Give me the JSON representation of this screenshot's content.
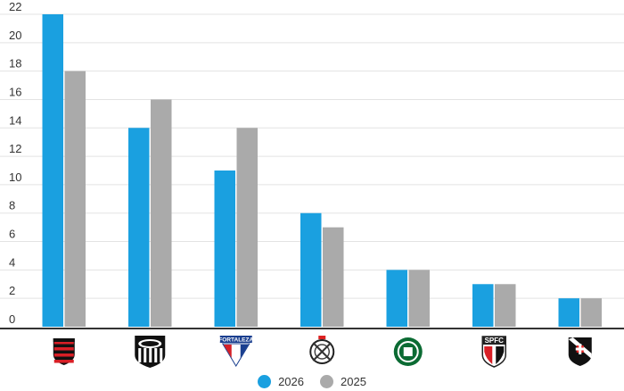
{
  "chart_data": {
    "type": "bar",
    "categories": [
      "flamengo-crest-icon",
      "ceara-crest-icon",
      "fortaleza-crest-icon",
      "corinthians-crest-icon",
      "palmeiras-crest-icon",
      "sao-paulo-crest-icon",
      "vasco-crest-icon"
    ],
    "series": [
      {
        "name": "2026",
        "color": "#1aa0e0",
        "values": [
          22,
          14,
          11,
          8,
          4,
          3,
          2
        ]
      },
      {
        "name": "2025",
        "color": "#aaaaaa",
        "values": [
          18,
          16,
          14,
          7,
          4,
          3,
          2
        ]
      }
    ],
    "y_ticks": [
      "0",
      "2",
      "4",
      "6",
      "8",
      "10",
      "12",
      "14",
      "16",
      "18",
      "20",
      "22"
    ],
    "ylim": [
      0,
      22
    ],
    "grid": true,
    "legend_position": "bottom-center",
    "crest_text": {
      "fortaleza": "FORTALEZA",
      "sao_paulo": "SPFC"
    }
  }
}
